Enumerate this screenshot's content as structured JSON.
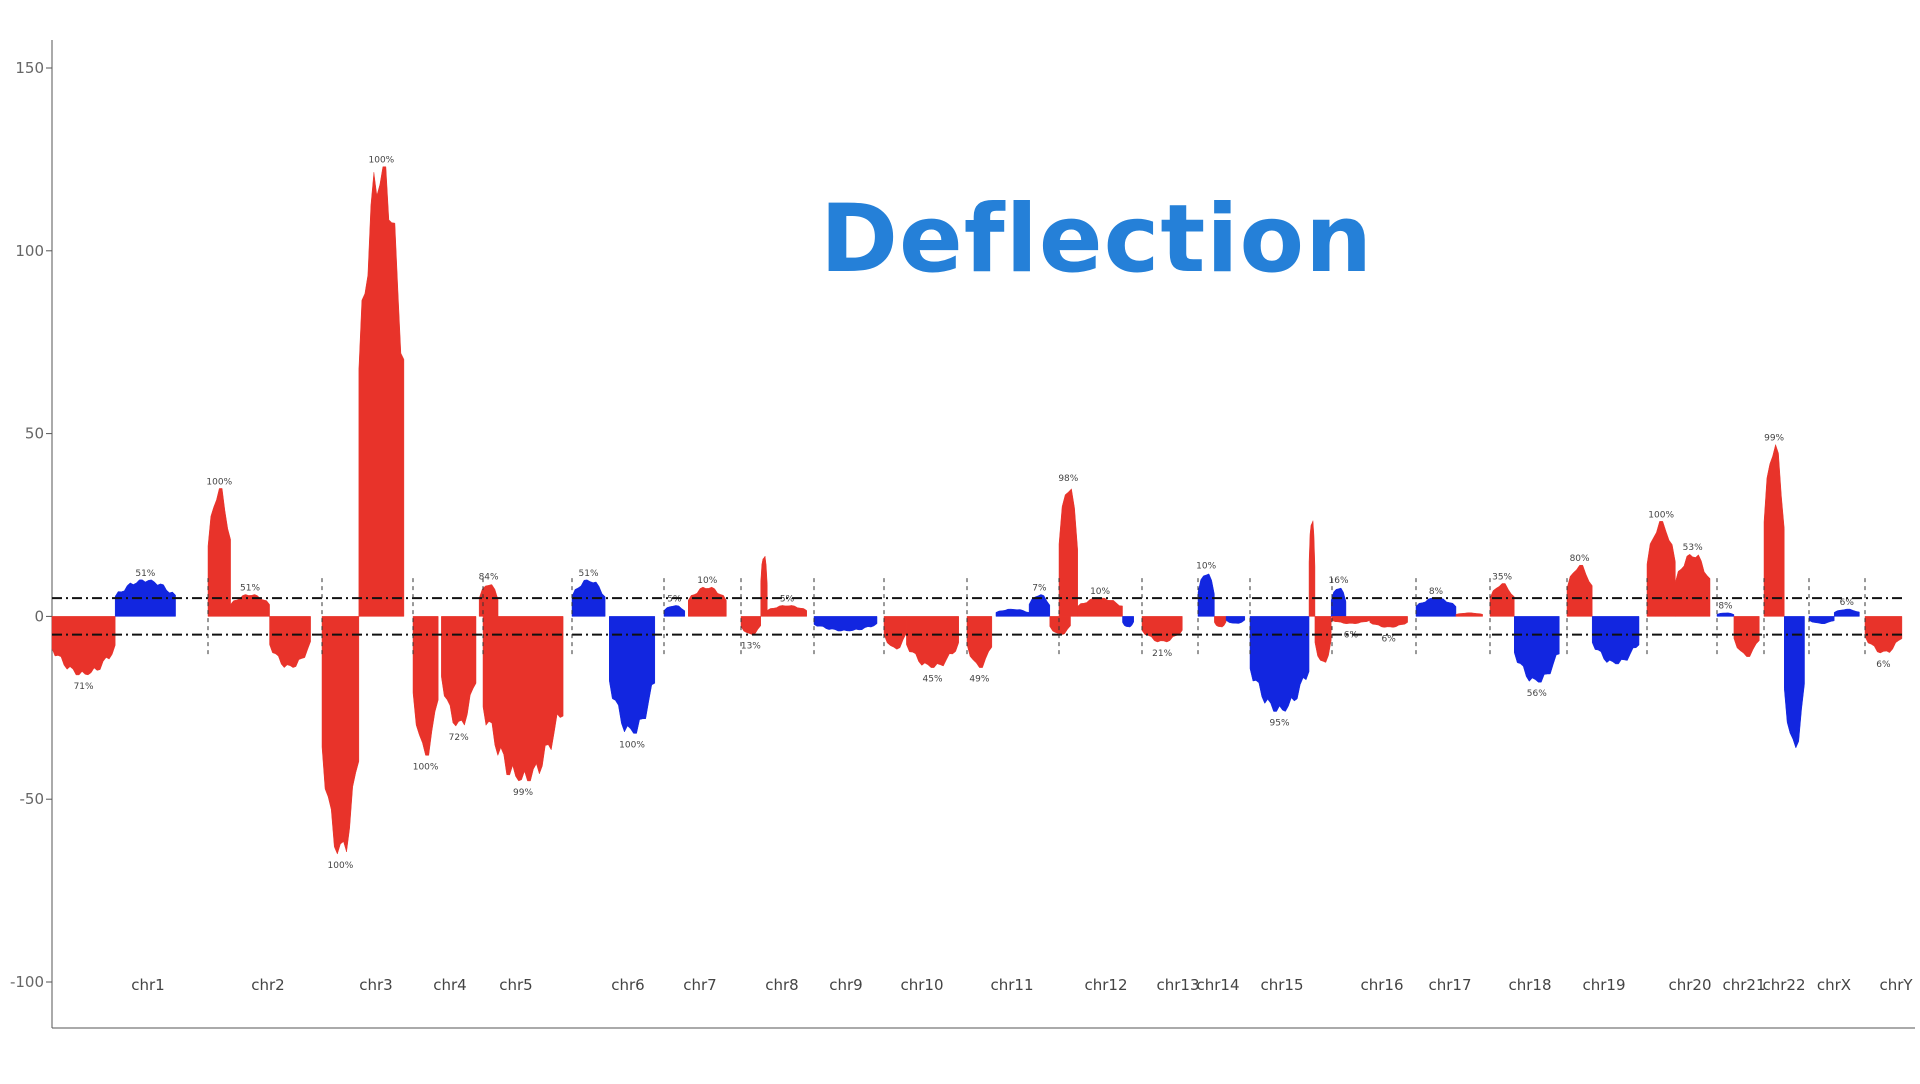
{
  "chart_data": {
    "type": "bar",
    "title": "Deflection",
    "xlabel": "",
    "ylabel": "",
    "ylim": [
      -100,
      150
    ],
    "yticks": [
      150,
      100,
      50,
      0,
      -50,
      -100
    ],
    "ytick_labels": [
      "150",
      "100",
      "50",
      "0",
      "-50",
      "-100"
    ],
    "threshold_lines": [
      5,
      -5
    ],
    "grid": false,
    "legend": "none",
    "colors": {
      "gain": "#e8332a",
      "loss": "#1226e0",
      "title": "#2580d8"
    },
    "categories": [
      "chr1",
      "chr2",
      "chr3",
      "chr4",
      "chr5",
      "chr6",
      "chr7",
      "chr8",
      "chr9",
      "chr10",
      "chr11",
      "chr12",
      "chr13",
      "chr14",
      "chr15",
      "chr16",
      "chr17",
      "chr18",
      "chr19",
      "chr20",
      "chr21",
      "chr22",
      "chrX",
      "chrY"
    ],
    "segments": [
      {
        "chr": "chr1",
        "x0": 0.0,
        "x1": 0.45,
        "value": -16,
        "color": "red",
        "label": "71%"
      },
      {
        "chr": "chr1",
        "x0": 0.45,
        "x1": 0.88,
        "value": 10,
        "color": "blue",
        "label": "51%"
      },
      {
        "chr": "chr2",
        "x0": 0.0,
        "x1": 0.22,
        "value": 35,
        "color": "red",
        "label": "100%"
      },
      {
        "chr": "chr2",
        "x0": 0.22,
        "x1": 0.6,
        "value": 6,
        "color": "red",
        "label": "51%"
      },
      {
        "chr": "chr2",
        "x0": 0.6,
        "x1": 1.0,
        "value": -14,
        "color": "red",
        "label": ""
      },
      {
        "chr": "chr3",
        "x0": 0.0,
        "x1": 0.45,
        "value": -65,
        "color": "red",
        "label": "100%"
      },
      {
        "chr": "chr3",
        "x0": 0.45,
        "x1": 1.0,
        "value": 123,
        "color": "red",
        "label": "100%"
      },
      {
        "chr": "chr4",
        "x0": 0.0,
        "x1": 0.4,
        "value": -38,
        "color": "red",
        "label": "100%"
      },
      {
        "chr": "chr4",
        "x0": 0.45,
        "x1": 1.0,
        "value": -30,
        "color": "red",
        "label": "72%"
      },
      {
        "chr": "chr4",
        "x0": 1.05,
        "x1": 1.35,
        "value": 9,
        "color": "red",
        "label": "84%"
      },
      {
        "chr": "chr5",
        "x0": 0.0,
        "x1": 1.0,
        "value": -45,
        "color": "red",
        "label": "99%"
      },
      {
        "chr": "chr6",
        "x0": 0.0,
        "x1": 0.4,
        "value": 10,
        "color": "blue",
        "label": "51%"
      },
      {
        "chr": "chr6",
        "x0": 0.45,
        "x1": 1.0,
        "value": -32,
        "color": "blue",
        "label": "100%"
      },
      {
        "chr": "chr7",
        "x0": 0.0,
        "x1": 0.3,
        "value": 3,
        "color": "blue",
        "label": "5%"
      },
      {
        "chr": "chr7",
        "x0": 0.35,
        "x1": 0.9,
        "value": 8,
        "color": "red",
        "label": "10%"
      },
      {
        "chr": "chr8",
        "x0": 0.0,
        "x1": 0.3,
        "value": -5,
        "color": "red",
        "label": "13%"
      },
      {
        "chr": "chr8",
        "x0": 0.3,
        "x1": 0.4,
        "value": 17,
        "color": "red",
        "label": ""
      },
      {
        "chr": "chr8",
        "x0": 0.4,
        "x1": 1.0,
        "value": 3,
        "color": "red",
        "label": "5%"
      },
      {
        "chr": "chr9",
        "x0": 0.0,
        "x1": 1.0,
        "value": -4,
        "color": "blue",
        "label": ""
      },
      {
        "chr": "chr10",
        "x0": 0.0,
        "x1": 0.3,
        "value": -9,
        "color": "red",
        "label": ""
      },
      {
        "chr": "chr10",
        "x0": 0.3,
        "x1": 1.0,
        "value": -14,
        "color": "red",
        "label": "45%"
      },
      {
        "chr": "chr11",
        "x0": 0.0,
        "x1": 0.3,
        "value": -14,
        "color": "red",
        "label": "49%"
      },
      {
        "chr": "chr11",
        "x0": 0.35,
        "x1": 0.75,
        "value": 2,
        "color": "blue",
        "label": ""
      },
      {
        "chr": "chr11",
        "x0": 0.75,
        "x1": 1.0,
        "value": 6,
        "color": "blue",
        "label": "7%"
      },
      {
        "chr": "chr11",
        "x0": 1.0,
        "x1": 1.25,
        "value": -5,
        "color": "red",
        "label": ""
      },
      {
        "chr": "chr12",
        "x0": 0.0,
        "x1": 0.25,
        "value": 36,
        "color": "red",
        "label": "98%"
      },
      {
        "chr": "chr12",
        "x0": 0.25,
        "x1": 0.85,
        "value": 5,
        "color": "red",
        "label": "10%"
      },
      {
        "chr": "chr12",
        "x0": 0.85,
        "x1": 1.0,
        "value": -3,
        "color": "blue",
        "label": ""
      },
      {
        "chr": "chr13",
        "x0": 0.0,
        "x1": 0.8,
        "value": -7,
        "color": "red",
        "label": "21%"
      },
      {
        "chr": "chr14",
        "x0": 0.0,
        "x1": 0.35,
        "value": 12,
        "color": "blue",
        "label": "10%"
      },
      {
        "chr": "chr14",
        "x0": 0.35,
        "x1": 0.6,
        "value": -3,
        "color": "red",
        "label": ""
      },
      {
        "chr": "chr14",
        "x0": 0.6,
        "x1": 1.0,
        "value": -2,
        "color": "blue",
        "label": ""
      },
      {
        "chr": "chr15",
        "x0": 0.0,
        "x1": 0.8,
        "value": -26,
        "color": "blue",
        "label": "95%"
      },
      {
        "chr": "chr15",
        "x0": 0.8,
        "x1": 0.88,
        "value": 27,
        "color": "red",
        "label": ""
      },
      {
        "chr": "chr15",
        "x0": 0.88,
        "x1": 1.1,
        "value": -13,
        "color": "red",
        "label": ""
      },
      {
        "chr": "chr15",
        "x0": 1.1,
        "x1": 1.3,
        "value": 8,
        "color": "blue",
        "label": "16%"
      },
      {
        "chr": "chr16",
        "x0": 0.0,
        "x1": 0.5,
        "value": -2,
        "color": "red",
        "label": "6%"
      },
      {
        "chr": "chr16",
        "x0": 0.5,
        "x1": 1.0,
        "value": -3,
        "color": "red",
        "label": "6%"
      },
      {
        "chr": "chr17",
        "x0": 0.0,
        "x1": 0.6,
        "value": 5,
        "color": "blue",
        "label": "8%"
      },
      {
        "chr": "chr17",
        "x0": 0.6,
        "x1": 1.0,
        "value": 1,
        "color": "red",
        "label": ""
      },
      {
        "chr": "chr18",
        "x0": 0.0,
        "x1": 0.35,
        "value": 9,
        "color": "red",
        "label": "35%"
      },
      {
        "chr": "chr18",
        "x0": 0.35,
        "x1": 1.0,
        "value": -18,
        "color": "blue",
        "label": "56%"
      },
      {
        "chr": "chr19",
        "x0": 0.0,
        "x1": 0.35,
        "value": 14,
        "color": "red",
        "label": "80%"
      },
      {
        "chr": "chr19",
        "x0": 0.35,
        "x1": 1.0,
        "value": -13,
        "color": "blue",
        "label": ""
      },
      {
        "chr": "chr20",
        "x0": 0.0,
        "x1": 0.45,
        "value": 26,
        "color": "red",
        "label": "100%"
      },
      {
        "chr": "chr20",
        "x0": 0.45,
        "x1": 1.0,
        "value": 17,
        "color": "red",
        "label": "53%"
      },
      {
        "chr": "chr21",
        "x0": 0.0,
        "x1": 0.4,
        "value": 1,
        "color": "blue",
        "label": "8%"
      },
      {
        "chr": "chr21",
        "x0": 0.4,
        "x1": 1.0,
        "value": -11,
        "color": "red",
        "label": ""
      },
      {
        "chr": "chr22",
        "x0": 0.0,
        "x1": 0.5,
        "value": 47,
        "color": "red",
        "label": "99%"
      },
      {
        "chr": "chr22",
        "x0": 0.5,
        "x1": 1.0,
        "value": -36,
        "color": "blue",
        "label": ""
      },
      {
        "chr": "chrX",
        "x0": 0.0,
        "x1": 0.5,
        "value": -2,
        "color": "blue",
        "label": ""
      },
      {
        "chr": "chrX",
        "x0": 0.5,
        "x1": 1.0,
        "value": 2,
        "color": "blue",
        "label": "6%"
      },
      {
        "chr": "chrY",
        "x0": 0.0,
        "x1": 1.0,
        "value": -10,
        "color": "red",
        "label": "6%"
      }
    ]
  }
}
